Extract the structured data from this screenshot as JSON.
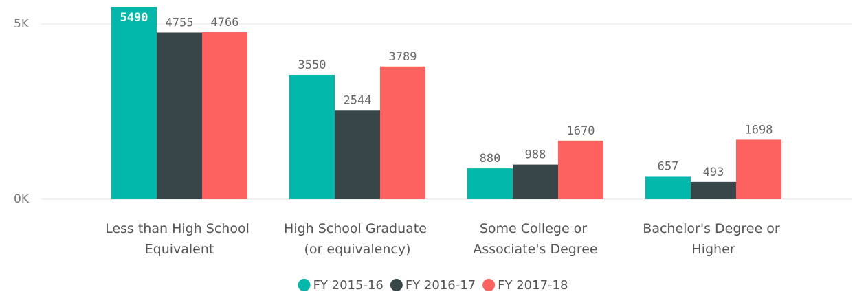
{
  "chart_data": {
    "type": "bar",
    "categories": [
      "Less than High School Equivalent",
      "High School Graduate (or equivalency)",
      "Some College or Associate's Degree",
      "Bachelor's Degree or Higher"
    ],
    "series": [
      {
        "name": "FY 2015-16",
        "color": "#01b8aa",
        "values": [
          5490,
          3550,
          880,
          657
        ]
      },
      {
        "name": "FY 2016-17",
        "color": "#374649",
        "values": [
          4755,
          2544,
          988,
          493
        ]
      },
      {
        "name": "FY 2017-18",
        "color": "#fd625e",
        "values": [
          4766,
          3789,
          1670,
          1698
        ]
      }
    ],
    "ylim": [
      0,
      5500
    ],
    "yticks": [
      {
        "value": 0,
        "label": "0K"
      },
      {
        "value": 5000,
        "label": "5K"
      }
    ],
    "grid": true,
    "legend": "bottom"
  }
}
